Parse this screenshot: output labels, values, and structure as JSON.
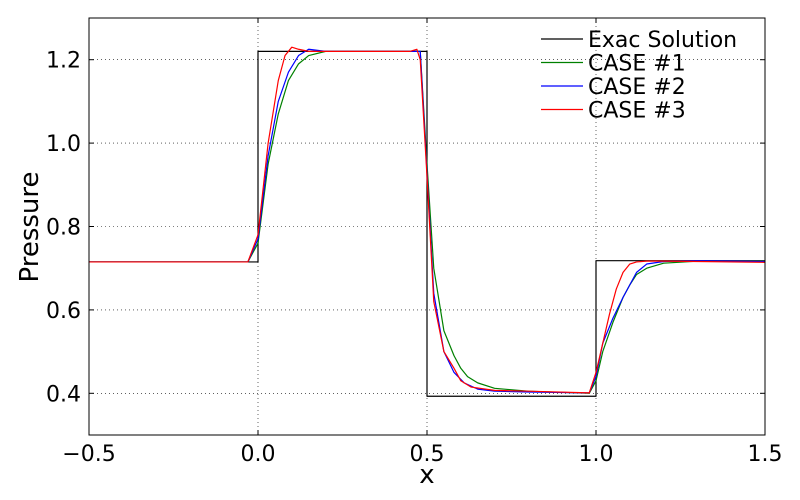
{
  "chart_data": {
    "type": "line",
    "xlabel": "x",
    "ylabel": "Pressure",
    "xlim": [
      -0.5,
      1.5
    ],
    "ylim": [
      0.3,
      1.3
    ],
    "grid": true,
    "legend_position": "top-right",
    "xticks": [
      -0.5,
      0.0,
      0.5,
      1.0,
      1.5
    ],
    "xtick_labels": [
      "−0.5",
      "0.0",
      "0.5",
      "1.0",
      "1.5"
    ],
    "yticks": [
      0.4,
      0.6,
      0.8,
      1.0,
      1.2
    ],
    "ytick_labels": [
      "0.4",
      "0.6",
      "0.8",
      "1.0",
      "1.2"
    ],
    "series": [
      {
        "name": "Exac Solution",
        "color": "#000000",
        "x": [
          -0.5,
          0.0,
          0.0,
          0.5,
          0.5,
          1.0,
          1.0,
          1.5
        ],
        "y": [
          0.715,
          0.715,
          1.22,
          1.22,
          0.393,
          0.393,
          0.718,
          0.718
        ]
      },
      {
        "name": "CASE #1",
        "color": "#008000",
        "x": [
          -0.5,
          -0.03,
          0.0,
          0.03,
          0.06,
          0.09,
          0.12,
          0.15,
          0.2,
          0.3,
          0.47,
          0.48,
          0.5,
          0.52,
          0.55,
          0.58,
          0.6,
          0.62,
          0.65,
          0.7,
          0.8,
          0.98,
          1.0,
          1.02,
          1.05,
          1.08,
          1.1,
          1.12,
          1.15,
          1.2,
          1.3,
          1.5
        ],
        "y": [
          0.715,
          0.715,
          0.76,
          0.95,
          1.07,
          1.15,
          1.19,
          1.21,
          1.22,
          1.22,
          1.22,
          1.22,
          0.95,
          0.7,
          0.55,
          0.49,
          0.46,
          0.44,
          0.425,
          0.412,
          0.405,
          0.4,
          0.43,
          0.5,
          0.57,
          0.63,
          0.66,
          0.685,
          0.7,
          0.712,
          0.717,
          0.717
        ]
      },
      {
        "name": "CASE #2",
        "color": "#0000ff",
        "x": [
          -0.5,
          -0.03,
          0.0,
          0.03,
          0.06,
          0.09,
          0.12,
          0.15,
          0.2,
          0.3,
          0.47,
          0.48,
          0.5,
          0.52,
          0.55,
          0.58,
          0.61,
          0.65,
          0.7,
          0.8,
          0.98,
          1.0,
          1.02,
          1.05,
          1.08,
          1.1,
          1.12,
          1.15,
          1.2,
          1.3,
          1.5
        ],
        "y": [
          0.715,
          0.715,
          0.77,
          0.97,
          1.1,
          1.17,
          1.21,
          1.225,
          1.22,
          1.22,
          1.22,
          1.22,
          0.93,
          0.64,
          0.5,
          0.45,
          0.425,
          0.41,
          0.405,
          0.403,
          0.401,
          0.44,
          0.52,
          0.58,
          0.63,
          0.66,
          0.69,
          0.71,
          0.716,
          0.718,
          0.716
        ]
      },
      {
        "name": "CASE #3",
        "color": "#ff0000",
        "x": [
          -0.5,
          -0.03,
          0.0,
          0.03,
          0.06,
          0.08,
          0.1,
          0.12,
          0.15,
          0.2,
          0.3,
          0.45,
          0.47,
          0.48,
          0.5,
          0.52,
          0.55,
          0.58,
          0.6,
          0.63,
          0.7,
          0.8,
          0.98,
          1.0,
          1.02,
          1.04,
          1.06,
          1.08,
          1.1,
          1.12,
          1.15,
          1.2,
          1.3,
          1.5
        ],
        "y": [
          0.715,
          0.715,
          0.78,
          1.0,
          1.15,
          1.21,
          1.23,
          1.225,
          1.22,
          1.22,
          1.22,
          1.22,
          1.225,
          1.2,
          0.92,
          0.62,
          0.5,
          0.46,
          0.43,
          0.415,
          0.407,
          0.405,
          0.401,
          0.45,
          0.52,
          0.59,
          0.65,
          0.69,
          0.71,
          0.715,
          0.717,
          0.717,
          0.716,
          0.714
        ]
      }
    ]
  }
}
